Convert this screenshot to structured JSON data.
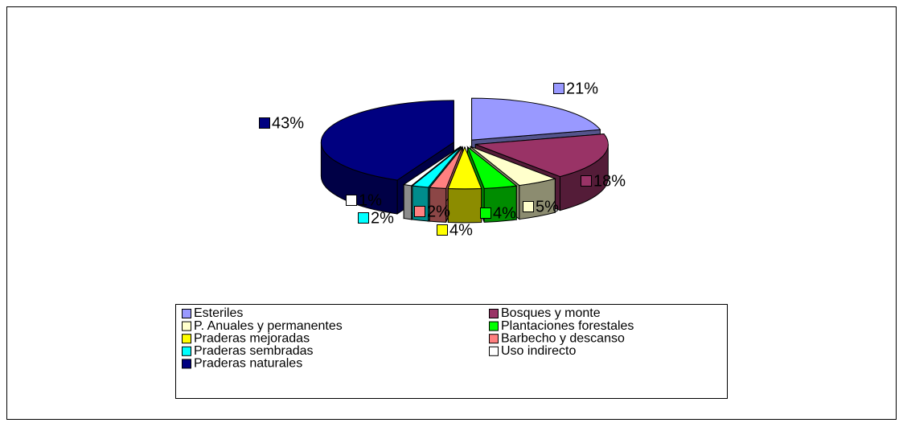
{
  "chart_data": {
    "type": "pie",
    "categories": [
      "Esteriles",
      "Bosques y monte",
      "P. Anuales y permanentes",
      "Plantaciones forestales",
      "Praderas mejoradas",
      "Barbecho y descanso",
      "Praderas sembradas",
      "Uso indirecto",
      "Praderas naturales"
    ],
    "values": [
      21,
      18,
      5,
      4,
      4,
      2,
      2,
      1,
      43
    ],
    "value_labels": [
      "21%",
      "18%",
      "5%",
      "4%",
      "4%",
      "2%",
      "2%",
      "1%",
      "43%"
    ],
    "colors": [
      "#9999ff",
      "#993366",
      "#ffffcc",
      "#00ff00",
      "#ffff00",
      "#ff8080",
      "#00ffff",
      "#ffffff",
      "#000080"
    ],
    "legend": "bottom"
  }
}
